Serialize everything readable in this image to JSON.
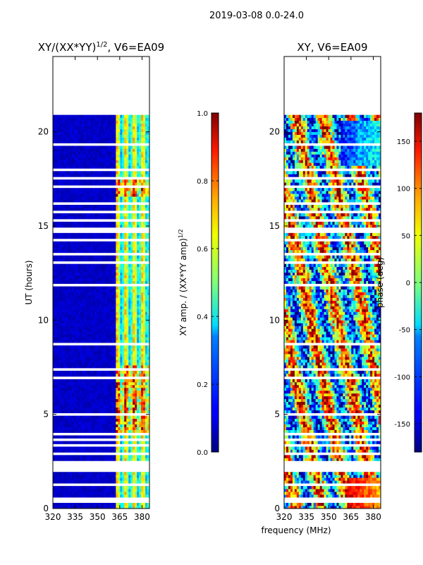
{
  "suptitle": "2019-03-08 0.0-24.0",
  "xlabel": "frequency (MHz)",
  "chart_data": [
    {
      "type": "heatmap",
      "title_text": "XY/(XX*YY)",
      "title_exp": "1/2",
      "title_suffix": ", V6=EA09",
      "ylabel": "UT (hours)",
      "xlim": [
        320,
        385
      ],
      "ylim": [
        0,
        24
      ],
      "xticks": [
        320,
        335,
        350,
        365,
        380
      ],
      "yticks": [
        0,
        5,
        10,
        15,
        20
      ],
      "colorbar": {
        "label_text": "XY amp. / (XX*YY amp)",
        "label_exp": "1/2",
        "range": [
          0.0,
          1.0
        ],
        "ticks": [
          "0.0",
          "0.2",
          "0.4",
          "0.6",
          "0.8",
          "1.0"
        ]
      }
    },
    {
      "type": "heatmap",
      "title_text": "XY, V6=EA09",
      "xlim": [
        320,
        385
      ],
      "ylim": [
        0,
        24
      ],
      "xticks": [
        320,
        335,
        350,
        365,
        380
      ],
      "yticks": [
        0,
        5,
        10,
        15,
        20
      ],
      "colorbar": {
        "label_text": "phase (deg)",
        "range": [
          -180,
          180
        ],
        "ticks": [
          -150,
          -100,
          -50,
          0,
          50,
          100,
          150
        ]
      }
    }
  ]
}
